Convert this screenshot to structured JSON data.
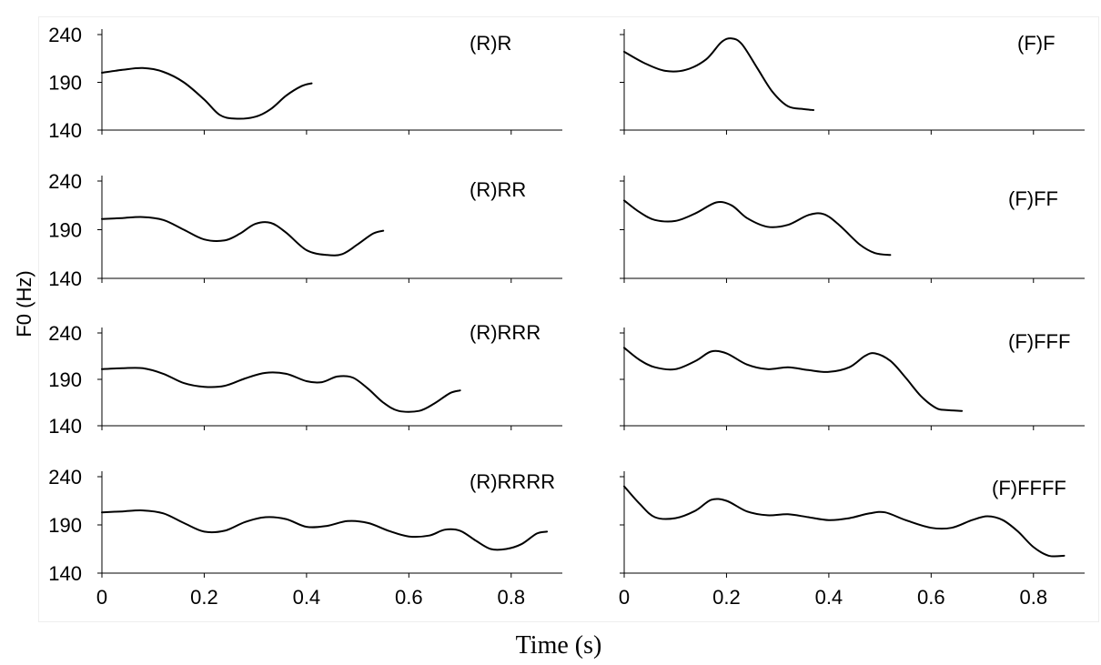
{
  "figure": {
    "xlabel": "Time (s)",
    "ylabel": "F0 (Hz)"
  },
  "chart_data": [
    {
      "type": "line",
      "title": "(R)R",
      "xlim": [
        0,
        0.9
      ],
      "ylim": [
        140,
        240
      ],
      "xticks": [
        "0",
        "0.2",
        "0.4",
        "0.6",
        "0.8"
      ],
      "yticks": [
        "240",
        "190",
        "140"
      ],
      "show_xtick_labels": false,
      "series": [
        {
          "x": [
            0,
            0.04,
            0.08,
            0.12,
            0.16,
            0.2,
            0.23,
            0.26,
            0.3,
            0.33,
            0.36,
            0.39,
            0.41
          ],
          "y": [
            200,
            203,
            205,
            201,
            190,
            172,
            156,
            152,
            154,
            162,
            176,
            186,
            189
          ]
        }
      ]
    },
    {
      "type": "line",
      "title": "(F)F",
      "xlim": [
        0,
        0.9
      ],
      "ylim": [
        140,
        240
      ],
      "xticks": [
        "0",
        "0.2",
        "0.4",
        "0.6",
        "0.8"
      ],
      "yticks": [
        "240",
        "190",
        "140"
      ],
      "show_xtick_labels": false,
      "series": [
        {
          "x": [
            0,
            0.04,
            0.08,
            0.12,
            0.16,
            0.19,
            0.21,
            0.23,
            0.26,
            0.29,
            0.32,
            0.35,
            0.37
          ],
          "y": [
            222,
            210,
            202,
            203,
            214,
            232,
            236,
            230,
            205,
            180,
            165,
            162,
            161
          ]
        }
      ]
    },
    {
      "type": "line",
      "title": "(R)RR",
      "xlim": [
        0,
        0.9
      ],
      "ylim": [
        140,
        240
      ],
      "xticks": [
        "0",
        "0.2",
        "0.4",
        "0.6",
        "0.8"
      ],
      "yticks": [
        "240",
        "190",
        "140"
      ],
      "show_xtick_labels": false,
      "series": [
        {
          "x": [
            0,
            0.04,
            0.08,
            0.12,
            0.16,
            0.2,
            0.24,
            0.27,
            0.3,
            0.33,
            0.36,
            0.4,
            0.44,
            0.47,
            0.5,
            0.53,
            0.55
          ],
          "y": [
            201,
            202,
            203,
            200,
            190,
            180,
            179,
            186,
            196,
            197,
            187,
            169,
            164,
            165,
            175,
            186,
            189
          ]
        }
      ]
    },
    {
      "type": "line",
      "title": "(F)FF",
      "xlim": [
        0,
        0.9
      ],
      "ylim": [
        140,
        240
      ],
      "xticks": [
        "0",
        "0.2",
        "0.4",
        "0.6",
        "0.8"
      ],
      "yticks": [
        "240",
        "190",
        "140"
      ],
      "show_xtick_labels": false,
      "series": [
        {
          "x": [
            0,
            0.03,
            0.06,
            0.1,
            0.14,
            0.18,
            0.21,
            0.24,
            0.28,
            0.32,
            0.36,
            0.39,
            0.42,
            0.46,
            0.49,
            0.52
          ],
          "y": [
            220,
            208,
            200,
            199,
            207,
            218,
            215,
            202,
            193,
            195,
            205,
            206,
            195,
            175,
            166,
            164
          ]
        }
      ]
    },
    {
      "type": "line",
      "title": "(R)RRR",
      "xlim": [
        0,
        0.9
      ],
      "ylim": [
        140,
        240
      ],
      "xticks": [
        "0",
        "0.2",
        "0.4",
        "0.6",
        "0.8"
      ],
      "yticks": [
        "240",
        "190",
        "140"
      ],
      "show_xtick_labels": false,
      "series": [
        {
          "x": [
            0,
            0.04,
            0.08,
            0.12,
            0.16,
            0.2,
            0.24,
            0.28,
            0.32,
            0.36,
            0.4,
            0.43,
            0.46,
            0.49,
            0.52,
            0.55,
            0.58,
            0.62,
            0.65,
            0.68,
            0.7
          ],
          "y": [
            201,
            202,
            202,
            196,
            186,
            182,
            183,
            191,
            197,
            196,
            188,
            187,
            193,
            192,
            180,
            165,
            156,
            156,
            164,
            175,
            178
          ]
        }
      ]
    },
    {
      "type": "line",
      "title": "(F)FFF",
      "xlim": [
        0,
        0.9
      ],
      "ylim": [
        140,
        240
      ],
      "xticks": [
        "0",
        "0.2",
        "0.4",
        "0.6",
        "0.8"
      ],
      "yticks": [
        "240",
        "190",
        "140"
      ],
      "show_xtick_labels": false,
      "series": [
        {
          "x": [
            0,
            0.03,
            0.06,
            0.1,
            0.14,
            0.17,
            0.2,
            0.24,
            0.28,
            0.32,
            0.36,
            0.4,
            0.44,
            0.47,
            0.49,
            0.52,
            0.55,
            0.58,
            0.61,
            0.63,
            0.66
          ],
          "y": [
            224,
            211,
            203,
            201,
            210,
            220,
            218,
            206,
            201,
            203,
            200,
            198,
            203,
            215,
            218,
            210,
            192,
            172,
            159,
            157,
            156
          ]
        }
      ]
    },
    {
      "type": "line",
      "title": "(R)RRRR",
      "xlim": [
        0,
        0.9
      ],
      "ylim": [
        140,
        240
      ],
      "xticks": [
        "0",
        "0.2",
        "0.4",
        "0.6",
        "0.8"
      ],
      "yticks": [
        "240",
        "190",
        "140"
      ],
      "show_xtick_labels": true,
      "series": [
        {
          "x": [
            0,
            0.04,
            0.08,
            0.12,
            0.16,
            0.2,
            0.24,
            0.28,
            0.32,
            0.36,
            0.4,
            0.44,
            0.48,
            0.52,
            0.56,
            0.6,
            0.64,
            0.67,
            0.7,
            0.73,
            0.76,
            0.79,
            0.82,
            0.85,
            0.87
          ],
          "y": [
            203,
            204,
            205,
            202,
            192,
            183,
            184,
            193,
            198,
            196,
            188,
            189,
            194,
            192,
            184,
            178,
            179,
            185,
            184,
            174,
            165,
            165,
            170,
            181,
            183
          ]
        }
      ]
    },
    {
      "type": "line",
      "title": "(F)FFFF",
      "xlim": [
        0,
        0.9
      ],
      "ylim": [
        140,
        240
      ],
      "xticks": [
        "0",
        "0.2",
        "0.4",
        "0.6",
        "0.8"
      ],
      "yticks": [
        "240",
        "190",
        "140"
      ],
      "show_xtick_labels": true,
      "series": [
        {
          "x": [
            0,
            0.03,
            0.06,
            0.1,
            0.14,
            0.17,
            0.2,
            0.24,
            0.28,
            0.32,
            0.36,
            0.4,
            0.44,
            0.48,
            0.51,
            0.55,
            0.6,
            0.64,
            0.68,
            0.71,
            0.74,
            0.77,
            0.8,
            0.83,
            0.86
          ],
          "y": [
            230,
            212,
            198,
            197,
            205,
            216,
            215,
            204,
            200,
            201,
            198,
            195,
            197,
            202,
            203,
            195,
            187,
            187,
            195,
            199,
            195,
            183,
            167,
            158,
            158
          ]
        }
      ]
    }
  ]
}
